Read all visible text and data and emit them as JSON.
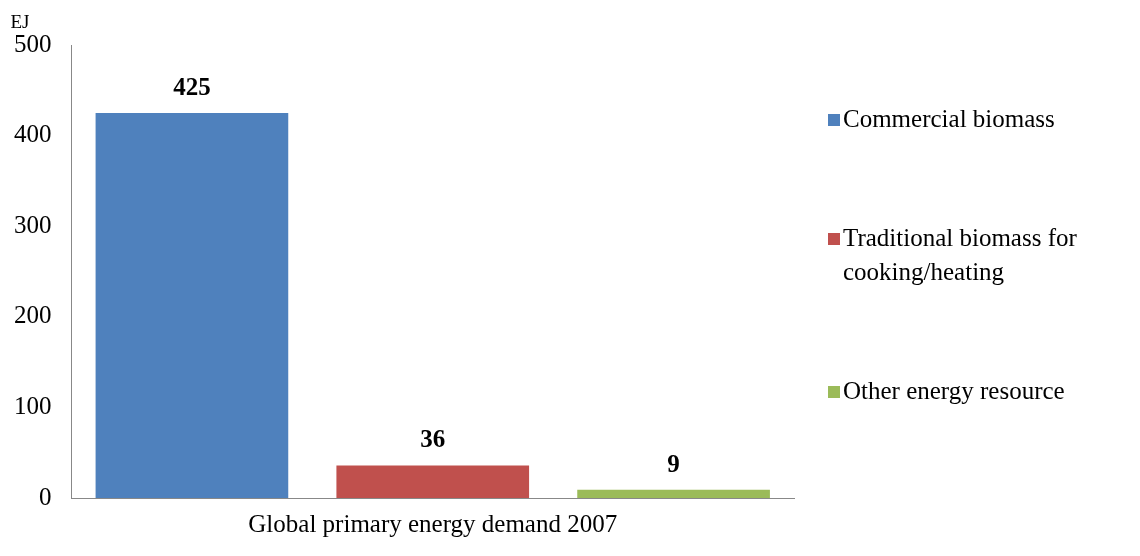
{
  "chart_data": {
    "type": "bar",
    "ylabel": "EJ",
    "categories": [
      "Global primary energy demand 2007"
    ],
    "series": [
      {
        "name": "Commercial biomass",
        "color": "#4f81bd",
        "values": [
          425
        ]
      },
      {
        "name": "Traditional biomass for cooking/heating",
        "color": "#c0504d",
        "values": [
          36
        ]
      },
      {
        "name": "Other energy resource",
        "color": "#9bbb59",
        "values": [
          9
        ]
      }
    ],
    "ylim": [
      0,
      500
    ],
    "yticks": [
      0,
      100,
      200,
      300,
      400,
      500
    ],
    "grid": false,
    "legend": "right",
    "data_labels": true
  }
}
